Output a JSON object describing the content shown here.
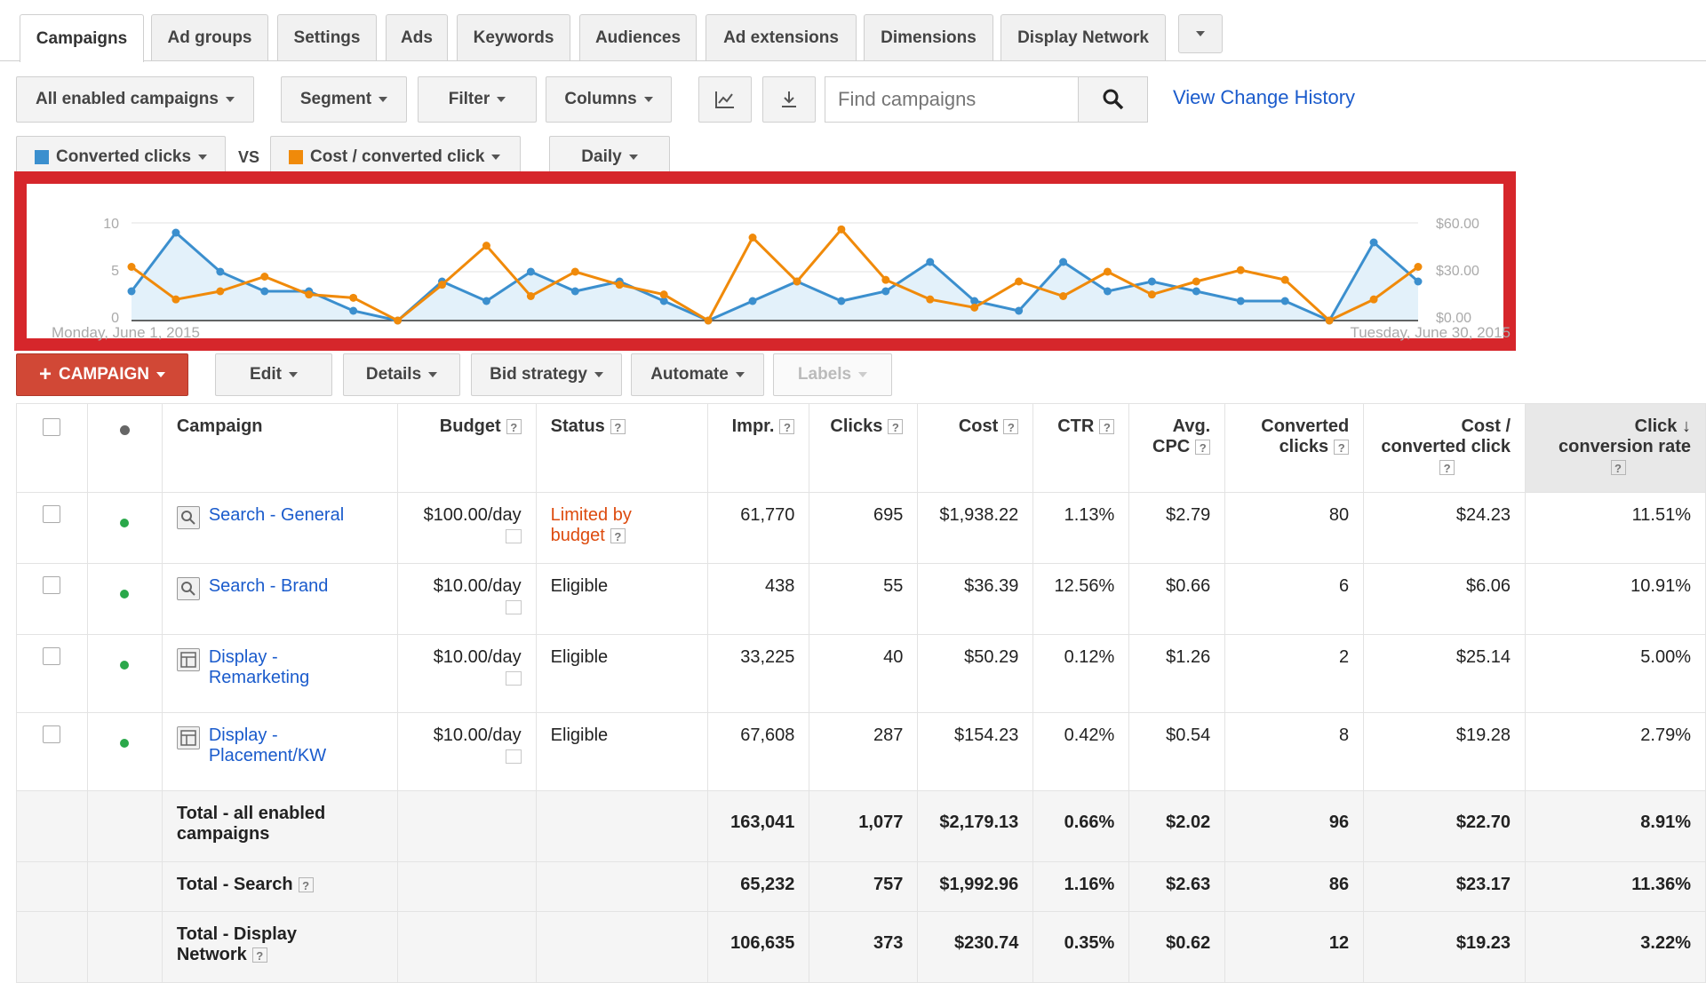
{
  "tabs": [
    "Campaigns",
    "Ad groups",
    "Settings",
    "Ads",
    "Keywords",
    "Audiences",
    "Ad extensions",
    "Dimensions",
    "Display Network"
  ],
  "toolbar": {
    "campaign_filter": "All enabled campaigns",
    "segment": "Segment",
    "filter": "Filter",
    "columns": "Columns",
    "search_placeholder": "Find campaigns",
    "change_history": "View Change History"
  },
  "metrics": {
    "metric1": "Converted clicks",
    "vs": "VS",
    "metric2": "Cost / converted click",
    "period": "Daily",
    "color1": "#3b8fce",
    "color2": "#f08a0a"
  },
  "chart_data": {
    "type": "line",
    "x_start_label": "Monday, June 1, 2015",
    "x_end_label": "Tuesday, June 30, 2015",
    "left_ticks": [
      "10",
      "5",
      "0"
    ],
    "right_ticks": [
      "$60.00",
      "$30.00",
      "$0.00"
    ],
    "ylim_left": [
      0,
      10
    ],
    "ylim_right": [
      0,
      60
    ],
    "series": [
      {
        "name": "Converted clicks",
        "axis": "left",
        "values": [
          3,
          9,
          5,
          3,
          3,
          1,
          0,
          4,
          2,
          5,
          3,
          4,
          2,
          0,
          2,
          4,
          2,
          3,
          6,
          2,
          1,
          6,
          3,
          4,
          3,
          2,
          2,
          0,
          8,
          4
        ]
      },
      {
        "name": "Cost / converted click",
        "axis": "right",
        "values": [
          33,
          13,
          18,
          27,
          16,
          14,
          0,
          22,
          46,
          15,
          30,
          22,
          16,
          0,
          51,
          24,
          56,
          25,
          13,
          8,
          24,
          15,
          30,
          16,
          24,
          31,
          25,
          0,
          13,
          33
        ]
      }
    ]
  },
  "actions": {
    "campaign": "CAMPAIGN",
    "edit": "Edit",
    "details": "Details",
    "bid_strategy": "Bid strategy",
    "automate": "Automate",
    "labels": "Labels"
  },
  "table": {
    "headers": {
      "campaign": "Campaign",
      "budget": "Budget",
      "status": "Status",
      "impr": "Impr.",
      "clicks": "Clicks",
      "cost": "Cost",
      "ctr": "CTR",
      "avg_cpc_1": "Avg.",
      "avg_cpc_2": "CPC",
      "conv_1": "Converted",
      "conv_2": "clicks",
      "cpc_conv_1": "Cost /",
      "cpc_conv_2": "converted click",
      "rate_1": "Click",
      "rate_2": "conversion rate"
    },
    "help_glyph": "?",
    "rows": [
      {
        "name_1": "Search - General",
        "name_2": "",
        "type": "search",
        "budget": "$100.00/day",
        "status_1": "Limited by",
        "status_2": "budget",
        "impr": "61,770",
        "clicks": "695",
        "cost": "$1,938.22",
        "ctr": "1.13%",
        "cpc": "$2.79",
        "conv": "80",
        "cost_conv": "$24.23",
        "rate": "11.51%"
      },
      {
        "name_1": "Search - Brand",
        "name_2": "",
        "type": "search",
        "budget": "$10.00/day",
        "status_1": "Eligible",
        "status_2": "",
        "impr": "438",
        "clicks": "55",
        "cost": "$36.39",
        "ctr": "12.56%",
        "cpc": "$0.66",
        "conv": "6",
        "cost_conv": "$6.06",
        "rate": "10.91%"
      },
      {
        "name_1": "Display -",
        "name_2": "Remarketing",
        "type": "display",
        "budget": "$10.00/day",
        "status_1": "Eligible",
        "status_2": "",
        "impr": "33,225",
        "clicks": "40",
        "cost": "$50.29",
        "ctr": "0.12%",
        "cpc": "$1.26",
        "conv": "2",
        "cost_conv": "$25.14",
        "rate": "5.00%"
      },
      {
        "name_1": "Display -",
        "name_2": "Placement/KW",
        "type": "display",
        "budget": "$10.00/day",
        "status_1": "Eligible",
        "status_2": "",
        "impr": "67,608",
        "clicks": "287",
        "cost": "$154.23",
        "ctr": "0.42%",
        "cpc": "$0.54",
        "conv": "8",
        "cost_conv": "$19.28",
        "rate": "2.79%"
      }
    ],
    "totals": [
      {
        "label_1": "Total - all enabled",
        "label_2": "campaigns",
        "help": false,
        "impr": "163,041",
        "clicks": "1,077",
        "cost": "$2,179.13",
        "ctr": "0.66%",
        "cpc": "$2.02",
        "conv": "96",
        "cost_conv": "$22.70",
        "rate": "8.91%"
      },
      {
        "label_1": "Total - Search",
        "label_2": "",
        "help": true,
        "impr": "65,232",
        "clicks": "757",
        "cost": "$1,992.96",
        "ctr": "1.16%",
        "cpc": "$2.63",
        "conv": "86",
        "cost_conv": "$23.17",
        "rate": "11.36%"
      },
      {
        "label_1": "Total - Display",
        "label_2": "Network",
        "help": true,
        "impr": "106,635",
        "clicks": "373",
        "cost": "$230.74",
        "ctr": "0.35%",
        "cpc": "$0.62",
        "conv": "12",
        "cost_conv": "$19.23",
        "rate": "3.22%"
      }
    ]
  }
}
